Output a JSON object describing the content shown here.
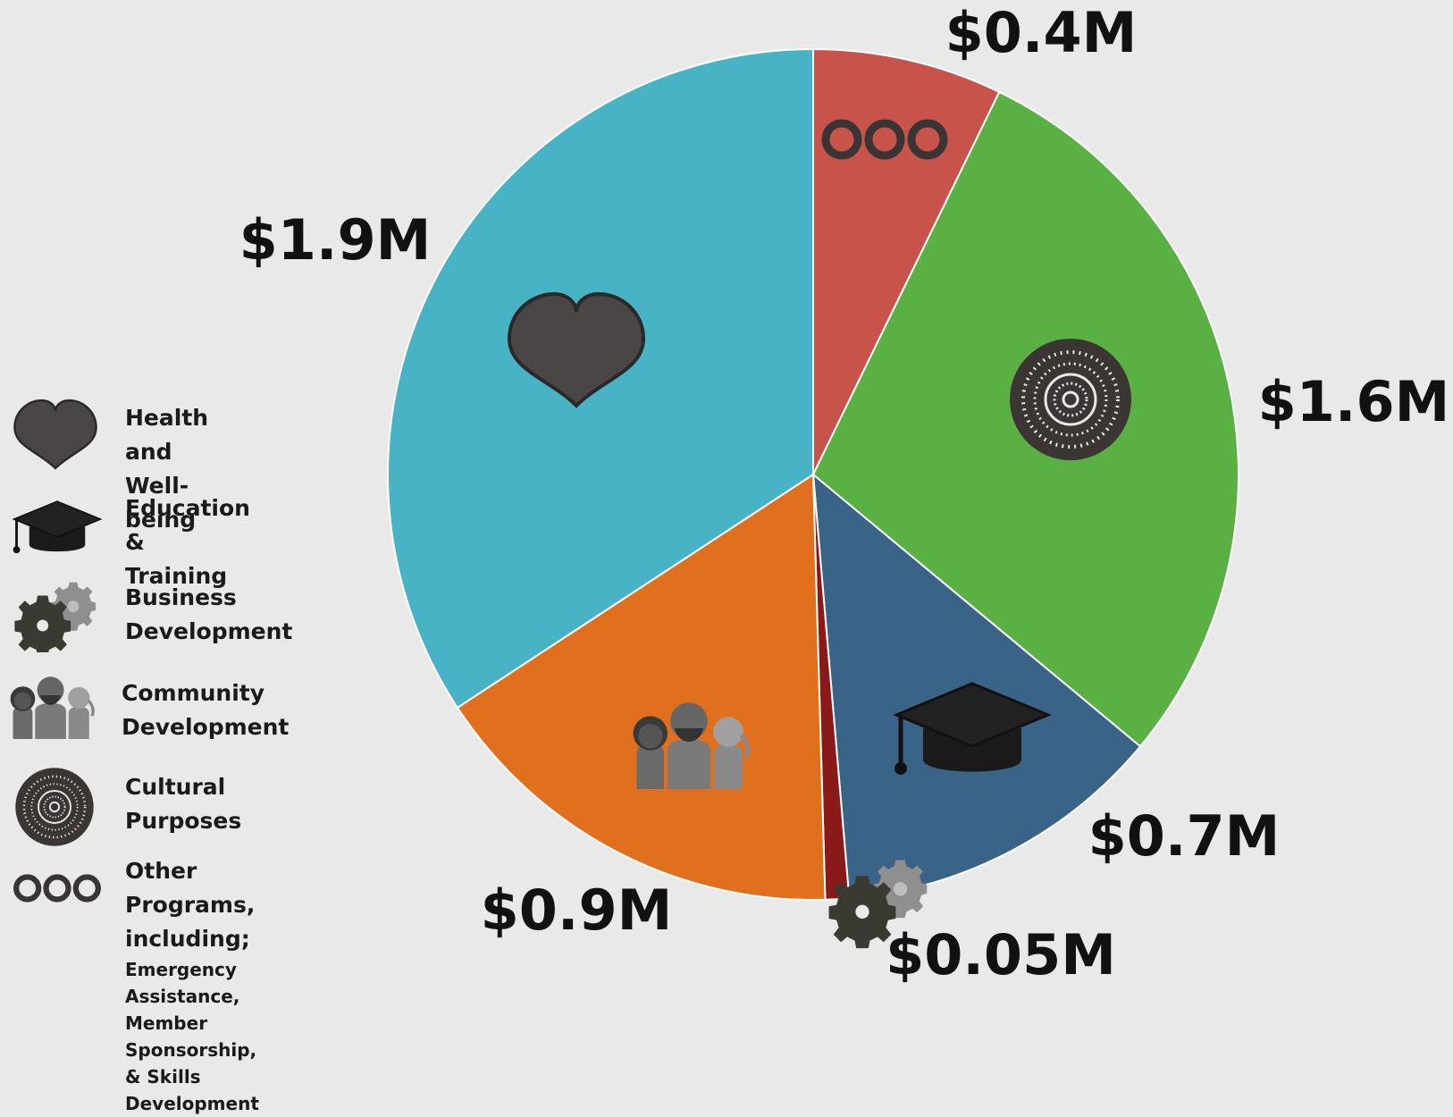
{
  "chart_data": {
    "type": "pie",
    "categories": [
      "Other Programs",
      "Cultural Purposes",
      "Education & Training",
      "Business Development",
      "Community Development",
      "Health and Well-being"
    ],
    "values": [
      0.4,
      1.6,
      0.7,
      0.05,
      0.9,
      1.9
    ],
    "value_labels": [
      "$0.4M",
      "$1.6M",
      "$0.7M",
      "$0.05M",
      "$0.9M",
      "$1.9M"
    ],
    "colors": [
      "#c8534a",
      "#5ab043",
      "#3a6388",
      "#8a1a1a",
      "#e06f1e",
      "#48b3c4"
    ],
    "slice_icons": [
      "three-rings-icon",
      "dot-circle-icon",
      "graduation-cap-icon",
      "gears-icon",
      "people-icon",
      "heart-icon"
    ],
    "start": "12 o'clock",
    "direction": "clockwise",
    "legend_position": "left"
  },
  "legend": {
    "items": [
      {
        "icon": "heart-icon",
        "line1": "Health and",
        "line2": "Well-being"
      },
      {
        "icon": "graduation-cap-icon",
        "line1": "Education &",
        "line2": "Training"
      },
      {
        "icon": "gears-icon",
        "line1": "Business",
        "line2": "Development"
      },
      {
        "icon": "people-icon",
        "line1": "Community",
        "line2": "Development"
      },
      {
        "icon": "dot-circle-icon",
        "line1": "Cultural",
        "line2": "Purposes"
      },
      {
        "icon": "three-rings-icon",
        "line1": "Other Programs,",
        "line2": "including;",
        "sub1": "Emergency Assistance,",
        "sub2": "Member Sponsorship,",
        "sub3": "& Skills Development"
      }
    ]
  }
}
